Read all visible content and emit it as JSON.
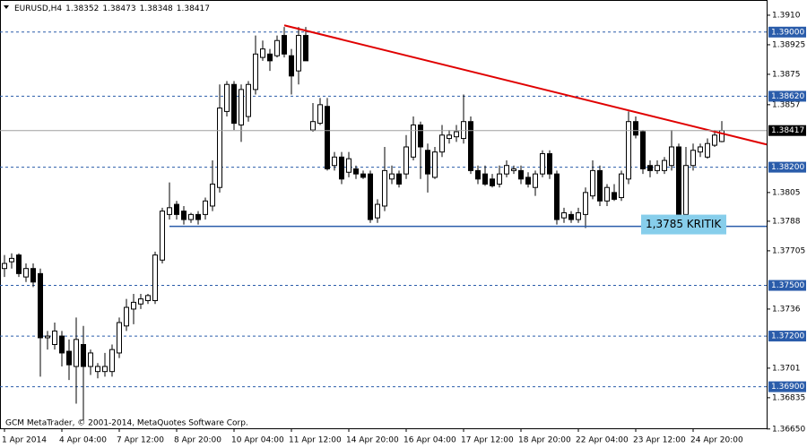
{
  "chart_data": {
    "type": "candlestick",
    "symbol": "EURUSD,H4",
    "footer": "GCM MetaTrader, © 2001-2014, MetaQuotes Software Corp.",
    "categories": [
      "1 Apr 2014",
      null,
      null,
      null,
      null,
      null,
      null,
      null,
      "4 Apr 04:00",
      null,
      null,
      null,
      null,
      null,
      null,
      null,
      "7 Apr 12:00",
      null,
      null,
      null,
      null,
      null,
      null,
      null,
      "8 Apr 20:00",
      null,
      null,
      null,
      null,
      null,
      null,
      null,
      "10 Apr 04:00",
      null,
      null,
      null,
      null,
      null,
      null,
      null,
      "11 Apr 12:00",
      null,
      null,
      null,
      null,
      null,
      null,
      null,
      "14 Apr 20:00",
      null,
      null,
      null,
      null,
      null,
      null,
      null,
      "16 Apr 04:00",
      null,
      null,
      null,
      null,
      null,
      null,
      null,
      "17 Apr 12:00",
      null,
      null,
      null,
      null,
      null,
      null,
      null,
      "18 Apr 20:00",
      null,
      null,
      null,
      null,
      null,
      null,
      null,
      "22 Apr 04:00",
      null,
      null,
      null,
      null,
      null,
      null,
      null,
      "23 Apr 12:00",
      null,
      null,
      null,
      null,
      null,
      null,
      null,
      "24 Apr 20:00",
      null,
      null,
      null,
      null
    ],
    "open": [
      1.376,
      1.3764,
      1.3768,
      1.3755,
      1.376,
      1.3757,
      1.3719,
      1.3715,
      1.372,
      1.3711,
      1.3702,
      1.3715,
      1.3702,
      1.3699,
      1.3699,
      1.3699,
      1.371,
      1.3726,
      1.3736,
      1.3739,
      1.3741,
      1.3741,
      1.3765,
      1.3792,
      1.3798,
      1.3794,
      1.3789,
      1.3792,
      1.3792,
      1.3797,
      1.3808,
      1.3853,
      1.3869,
      1.3845,
      1.385,
      1.3866,
      1.3885,
      1.3887,
      1.3886,
      1.3898,
      1.3886,
      1.3877,
      1.3898,
      1.3842,
      1.3846,
      1.3856,
      1.3821,
      1.3826,
      1.3817,
      1.3819,
      1.3816,
      1.3816,
      1.379,
      1.3797,
      1.3813,
      1.3816,
      1.3816,
      1.3826,
      1.3845,
      1.383,
      1.3814,
      1.3829,
      1.3837,
      1.3838,
      1.3837,
      1.3847,
      1.3818,
      1.3816,
      1.3813,
      1.381,
      1.3816,
      1.3818,
      1.3818,
      1.3814,
      1.3808,
      1.3816,
      1.3828,
      1.3816,
      1.379,
      1.3792,
      1.3789,
      1.3792,
      1.3803,
      1.3818,
      1.38,
      1.3805,
      1.3802,
      1.3813,
      1.3847,
      1.3841,
      1.3821,
      1.3818,
      1.3818,
      1.3821,
      1.3832,
      1.3792,
      1.3821,
      1.3829,
      1.3826,
      1.3833,
      1.38352
    ],
    "high": [
      1.3768,
      1.3769,
      1.3769,
      1.3763,
      1.3763,
      1.376,
      1.3723,
      1.3728,
      1.3723,
      1.3718,
      1.3731,
      1.3726,
      1.3712,
      1.3704,
      1.371,
      1.3715,
      1.3731,
      1.3742,
      1.3745,
      1.3745,
      1.3745,
      1.377,
      1.3796,
      1.3811,
      1.38,
      1.3797,
      1.3793,
      1.3794,
      1.3802,
      1.3824,
      1.3869,
      1.3871,
      1.3871,
      1.3869,
      1.3871,
      1.3898,
      1.3895,
      1.389,
      1.3898,
      1.3903,
      1.389,
      1.3903,
      1.3903,
      1.3858,
      1.3861,
      1.3861,
      1.3829,
      1.3829,
      1.3829,
      1.3821,
      1.3818,
      1.3818,
      1.3801,
      1.3832,
      1.3821,
      1.3818,
      1.3839,
      1.385,
      1.3847,
      1.3834,
      1.3832,
      1.3845,
      1.3842,
      1.3845,
      1.3863,
      1.385,
      1.3821,
      1.3821,
      1.3816,
      1.3821,
      1.3824,
      1.3821,
      1.3821,
      1.3817,
      1.3818,
      1.383,
      1.383,
      1.3818,
      1.3796,
      1.3794,
      1.3796,
      1.3808,
      1.3824,
      1.3821,
      1.381,
      1.381,
      1.3818,
      1.3853,
      1.385,
      1.3842,
      1.3824,
      1.3824,
      1.3826,
      1.3842,
      1.3834,
      1.3832,
      1.3834,
      1.3834,
      1.3837,
      1.3842,
      1.38473
    ],
    "low": [
      1.3755,
      1.376,
      1.3755,
      1.3752,
      1.3749,
      1.3696,
      1.3712,
      1.3712,
      1.3702,
      1.3694,
      1.368,
      1.367,
      1.3697,
      1.3695,
      1.3696,
      1.3696,
      1.3707,
      1.3723,
      1.3727,
      1.3736,
      1.3739,
      1.3739,
      1.3763,
      1.3789,
      1.3789,
      1.3786,
      1.3787,
      1.3786,
      1.3789,
      1.3794,
      1.3805,
      1.385,
      1.3842,
      1.3835,
      1.3847,
      1.3863,
      1.3883,
      1.3877,
      1.3885,
      1.3885,
      1.3863,
      1.3869,
      1.3883,
      1.3841,
      1.3845,
      1.3818,
      1.3818,
      1.381,
      1.3814,
      1.3813,
      1.3813,
      1.3787,
      1.3787,
      1.3794,
      1.381,
      1.3808,
      1.3813,
      1.3824,
      1.3813,
      1.3805,
      1.3813,
      1.3826,
      1.3834,
      1.3835,
      1.3834,
      1.3816,
      1.381,
      1.3809,
      1.3808,
      1.3808,
      1.3814,
      1.3816,
      1.381,
      1.3808,
      1.3803,
      1.3814,
      1.3813,
      1.3786,
      1.3787,
      1.3787,
      1.3787,
      1.3784,
      1.3801,
      1.3797,
      1.3797,
      1.38,
      1.38,
      1.381,
      1.3837,
      1.3816,
      1.3814,
      1.3816,
      1.3816,
      1.3818,
      1.3789,
      1.379,
      1.3818,
      1.3826,
      1.3825,
      1.3832,
      1.38348
    ],
    "close": [
      1.3763,
      1.3766,
      1.3757,
      1.376,
      1.3752,
      1.3719,
      1.372,
      1.3723,
      1.371,
      1.3703,
      1.3718,
      1.3702,
      1.371,
      1.3702,
      1.3702,
      1.3712,
      1.3728,
      1.3737,
      1.374,
      1.3742,
      1.3744,
      1.3768,
      1.3794,
      1.3796,
      1.3792,
      1.3789,
      1.3792,
      1.3789,
      1.38,
      1.381,
      1.3855,
      1.3869,
      1.3846,
      1.3866,
      1.3869,
      1.3887,
      1.389,
      1.3883,
      1.3895,
      1.3887,
      1.3874,
      1.3898,
      1.3883,
      1.3847,
      1.3857,
      1.3819,
      1.3826,
      1.3813,
      1.3825,
      1.3816,
      1.3814,
      1.3789,
      1.3798,
      1.3818,
      1.3816,
      1.381,
      1.3832,
      1.3845,
      1.3832,
      1.3816,
      1.3829,
      1.3839,
      1.3839,
      1.3841,
      1.3847,
      1.3818,
      1.3813,
      1.381,
      1.3809,
      1.3816,
      1.3821,
      1.3819,
      1.3813,
      1.381,
      1.3816,
      1.3828,
      1.3816,
      1.3789,
      1.3793,
      1.3789,
      1.3793,
      1.3805,
      1.3818,
      1.38,
      1.3808,
      1.3801,
      1.3816,
      1.3847,
      1.3839,
      1.3819,
      1.3818,
      1.3821,
      1.3824,
      1.3832,
      1.3792,
      1.3821,
      1.383,
      1.3832,
      1.3834,
      1.3839,
      1.38417
    ],
    "up_color": "#ffffff",
    "down_color": "#000000",
    "outline_color": "#000000",
    "ylim": [
      1.36654,
      1.3919
    ],
    "yticks": [
      {
        "value": 1.391,
        "label": "1.3910"
      },
      {
        "value": 1.38925,
        "label": "1.38925"
      },
      {
        "value": 1.3875,
        "label": "1.3875"
      },
      {
        "value": 1.3857,
        "label": "1.3857"
      },
      {
        "value": 1.3805,
        "label": "1.3805"
      },
      {
        "value": 1.3788,
        "label": "1.3788"
      },
      {
        "value": 1.37705,
        "label": "1.37705"
      },
      {
        "value": 1.3736,
        "label": "1.3736"
      },
      {
        "value": 1.3701,
        "label": "1.3701"
      },
      {
        "value": 1.36835,
        "label": "1.36835"
      },
      {
        "value": 1.3665,
        "label": "1.36650"
      }
    ],
    "levels": [
      {
        "value": 1.39,
        "label": "1.39000"
      },
      {
        "value": 1.3862,
        "label": "1.38620"
      },
      {
        "value": 1.382,
        "label": "1.38200"
      },
      {
        "value": 1.375,
        "label": "1.37500"
      },
      {
        "value": 1.372,
        "label": "1.37200"
      },
      {
        "value": 1.369,
        "label": "1.36900"
      }
    ],
    "level_color": "#2a5caa",
    "support": {
      "value": 1.3785,
      "label": "1,3785 KRITIK",
      "start": 23,
      "color": "#2a5caa",
      "label_color": "#87ceeb"
    },
    "trendline": {
      "points": [
        [
          39,
          1.3904
        ],
        [
          100,
          1.384
        ]
      ],
      "color": "#e00000"
    }
  }
}
